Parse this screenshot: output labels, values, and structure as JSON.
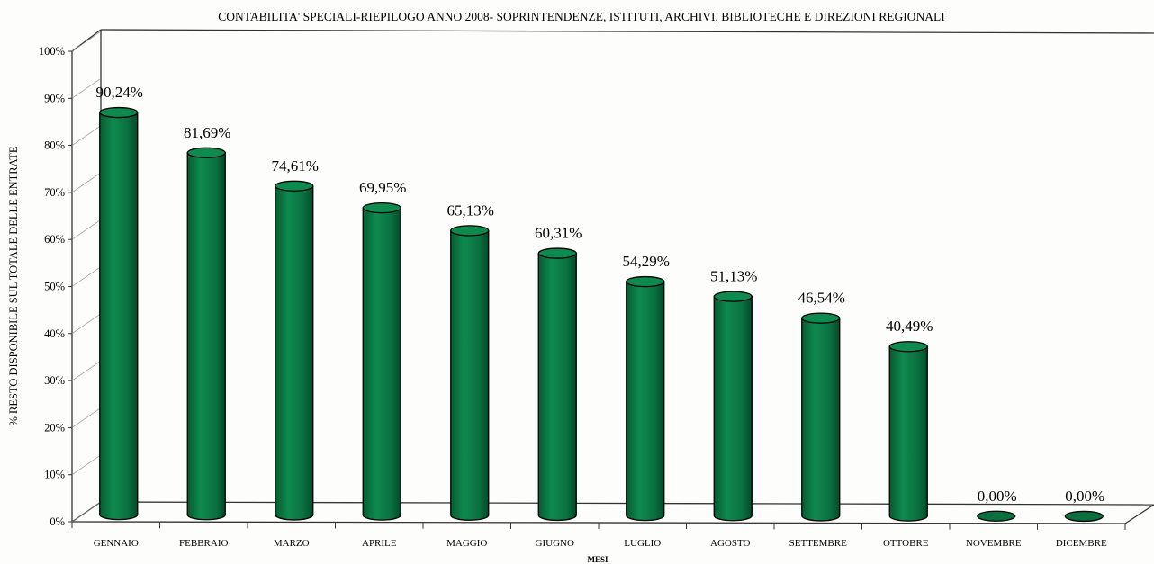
{
  "chart_data": {
    "type": "bar",
    "title": "CONTABILITA' SPECIALI-RIEPILOGO ANNO 2008- SOPRINTENDENZE, ISTITUTI, ARCHIVI, BIBLIOTECHE E DIREZIONI REGIONALI",
    "xlabel": "MESI",
    "ylabel": "% RESTO DISPONIBILE SUL TOTALE DELLE ENTRATE",
    "categories": [
      "GENNAIO",
      "FEBBRAIO",
      "MARZO",
      "APRILE",
      "MAGGIO",
      "GIUGNO",
      "LUGLIO",
      "AGOSTO",
      "SETTEMBRE",
      "OTTOBRE",
      "NOVEMBRE",
      "DICEMBRE"
    ],
    "values": [
      90.24,
      81.69,
      74.61,
      69.95,
      65.13,
      60.31,
      54.29,
      51.13,
      46.54,
      40.49,
      0.0,
      0.0
    ],
    "data_labels": [
      "90,24%",
      "81,69%",
      "74,61%",
      "69,95%",
      "65,13%",
      "60,31%",
      "54,29%",
      "51,13%",
      "46,54%",
      "40,49%",
      "0,00%",
      "0,00%"
    ],
    "y_ticks": [
      "0%",
      "10%",
      "20%",
      "30%",
      "40%",
      "50%",
      "60%",
      "70%",
      "80%",
      "90%",
      "100%"
    ],
    "ylim": [
      0,
      100
    ],
    "grid": false,
    "legend": "none",
    "colors": {
      "bar_body": "#0b7a44",
      "bar_top": "#0f8a4f",
      "outline": "#000000",
      "axis": "#333333"
    }
  }
}
